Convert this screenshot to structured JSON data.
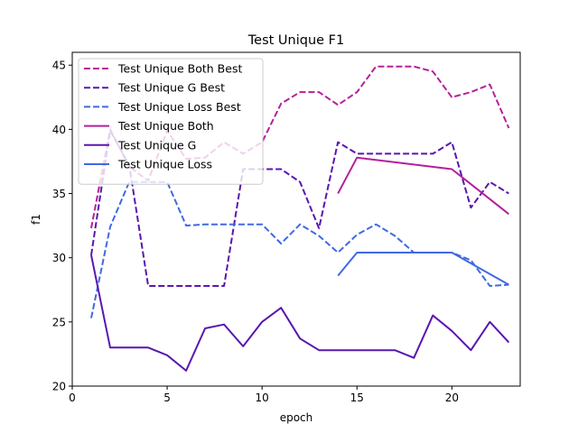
{
  "chart_data": {
    "type": "line",
    "title": "Test Unique F1",
    "xlabel": "epoch",
    "ylabel": "f1",
    "xlim": [
      0.0,
      23.6
    ],
    "ylim": [
      20,
      46
    ],
    "xticks": [
      0,
      5,
      10,
      15,
      20
    ],
    "yticks": [
      20,
      25,
      30,
      35,
      40,
      45
    ],
    "grid": false,
    "legend_position": "top-left",
    "series": [
      {
        "name": "Test Unique Both Best",
        "color": "#b5209a",
        "style": "dashed",
        "x": [
          1,
          2,
          3,
          4,
          5,
          6,
          7,
          8,
          9,
          10,
          11,
          12,
          13,
          14,
          15,
          16,
          17,
          18,
          19,
          20,
          21,
          22,
          23
        ],
        "y": [
          32.3,
          40.0,
          37.1,
          36.0,
          39.9,
          37.7,
          37.8,
          39.0,
          38.1,
          39.0,
          42.0,
          42.9,
          42.9,
          41.9,
          42.9,
          44.9,
          44.9,
          44.9,
          44.5,
          42.5,
          42.9,
          43.5,
          40.1
        ]
      },
      {
        "name": "Test Unique G Best",
        "color": "#5a16b0",
        "style": "dashed",
        "x": [
          1,
          2,
          3,
          4,
          5,
          6,
          7,
          8,
          9,
          10,
          11,
          12,
          13,
          14,
          15,
          16,
          17,
          18,
          19,
          20,
          21,
          22,
          23
        ],
        "y": [
          30.2,
          39.9,
          37.2,
          27.8,
          27.8,
          27.8,
          27.8,
          27.8,
          36.9,
          36.9,
          36.9,
          35.9,
          32.3,
          39.0,
          38.1,
          38.1,
          38.1,
          38.1,
          38.1,
          39.0,
          33.9,
          35.9,
          35.0
        ]
      },
      {
        "name": "Test Unique Loss Best",
        "color": "#4169e1",
        "style": "dashed",
        "x": [
          1,
          2,
          3,
          4,
          5,
          6,
          7,
          8,
          9,
          10,
          11,
          12,
          13,
          14,
          15,
          16,
          17,
          18,
          19,
          20,
          21,
          22,
          23
        ],
        "y": [
          25.3,
          32.4,
          35.9,
          35.9,
          35.9,
          32.5,
          32.6,
          32.6,
          32.6,
          32.6,
          31.1,
          32.6,
          31.7,
          30.4,
          31.8,
          32.6,
          31.7,
          30.4,
          30.4,
          30.4,
          29.8,
          27.8,
          27.9
        ]
      },
      {
        "name": "Test Unique Both",
        "color": "#b5209a",
        "style": "solid",
        "x": [
          14,
          15,
          20,
          23
        ],
        "y": [
          35.0,
          37.8,
          36.9,
          33.4
        ]
      },
      {
        "name": "Test Unique G",
        "color": "#5a16b0",
        "style": "solid",
        "x": [
          1,
          2,
          3,
          4,
          5,
          6,
          7,
          8,
          9,
          10,
          11,
          12,
          13,
          14,
          15,
          16,
          17,
          18,
          19,
          20,
          21,
          22,
          23
        ],
        "y": [
          30.2,
          23.0,
          23.0,
          23.0,
          22.4,
          21.2,
          24.5,
          24.8,
          23.1,
          25.0,
          26.1,
          23.7,
          22.8,
          22.8,
          22.8,
          22.8,
          22.8,
          22.2,
          25.5,
          24.3,
          22.8,
          25.0,
          23.4
        ]
      },
      {
        "name": "Test Unique Loss",
        "color": "#4169e1",
        "style": "solid",
        "x": [
          14,
          15,
          20,
          23
        ],
        "y": [
          28.6,
          30.4,
          30.4,
          27.9
        ]
      }
    ]
  }
}
